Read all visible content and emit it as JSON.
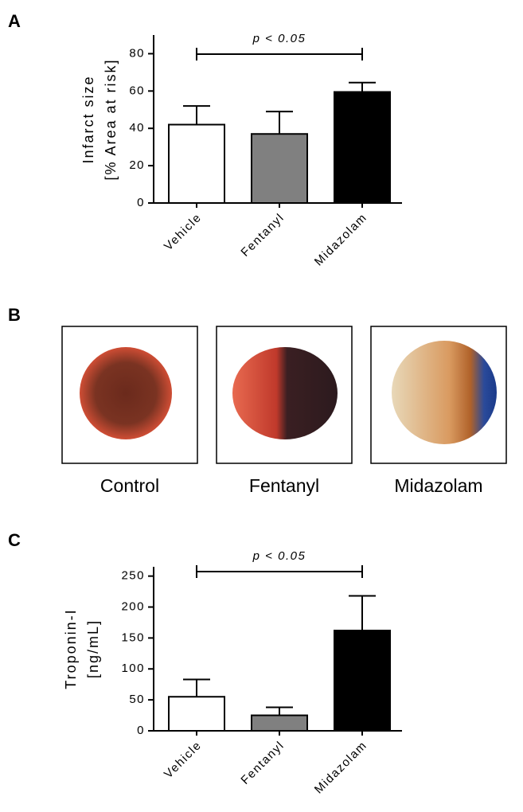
{
  "chart_data": [
    {
      "type": "bar",
      "panel_label": "A",
      "ylabel": [
        "Infarct size",
        "[% Area at risk]"
      ],
      "annotation": "p < 0.05",
      "categories": [
        "Vehicle",
        "Fentanyl",
        "Midazolam"
      ],
      "values": [
        42,
        37,
        59.5
      ],
      "errors": [
        10,
        12,
        5
      ],
      "colors": [
        "#ffffff",
        "#808080",
        "#000000"
      ],
      "ylim": [
        0,
        90
      ],
      "yticks": [
        0,
        20,
        40,
        60,
        80
      ]
    },
    {
      "type": "bar",
      "panel_label": "C",
      "ylabel": [
        "Troponin-I",
        "[ng/mL]"
      ],
      "annotation": "p < 0.05",
      "categories": [
        "Vehicle",
        "Fentanyl",
        "Midazolam"
      ],
      "values": [
        55,
        25,
        162
      ],
      "errors": [
        28,
        13,
        56
      ],
      "colors": [
        "#ffffff",
        "#808080",
        "#000000"
      ],
      "ylim": [
        0,
        265
      ],
      "yticks": [
        0,
        50,
        100,
        150,
        200,
        250
      ]
    }
  ],
  "panel_b": {
    "label": "B",
    "captions": [
      "Control",
      "Fentanyl",
      "Midazolam"
    ]
  }
}
